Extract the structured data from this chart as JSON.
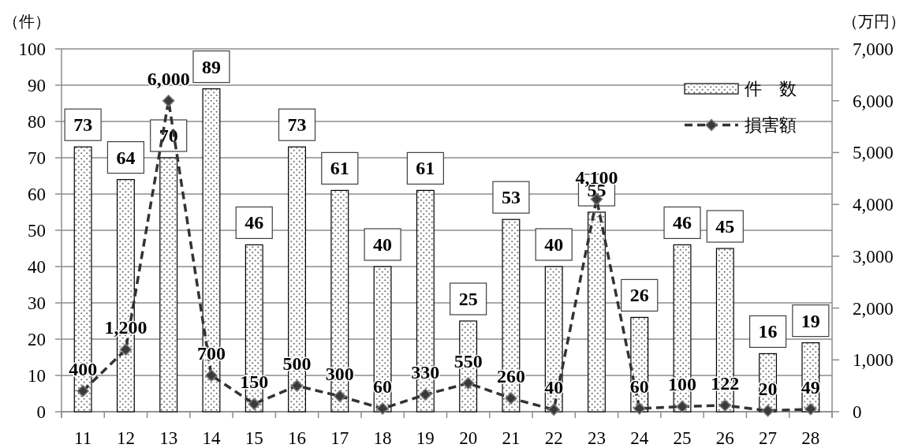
{
  "chart_data": {
    "type": "bar",
    "categories": [
      "11",
      "12",
      "13",
      "14",
      "15",
      "16",
      "17",
      "18",
      "19",
      "20",
      "21",
      "22",
      "23",
      "24",
      "25",
      "26",
      "27",
      "28"
    ],
    "series": [
      {
        "name": "件　数",
        "color": "#ffffff",
        "values": [
          73,
          64,
          70,
          89,
          46,
          73,
          61,
          40,
          61,
          25,
          53,
          40,
          55,
          26,
          46,
          45,
          16,
          19
        ]
      },
      {
        "name": "損害額",
        "type": "line",
        "axis": "y2",
        "color": "#333333",
        "values": [
          400,
          1200,
          6000,
          700,
          150,
          500,
          300,
          60,
          330,
          550,
          260,
          40,
          4100,
          60,
          100,
          122,
          20,
          49
        ],
        "value_labels": [
          "400",
          "1,200",
          "6,000",
          "700",
          "150",
          "500",
          "300",
          "60",
          "330",
          "550",
          "260",
          "40",
          "4,100",
          "60",
          "100",
          "122",
          "20",
          "49"
        ]
      }
    ],
    "ylabel": "（件）",
    "y2label": "（万円）",
    "ylim": [
      0,
      100
    ],
    "yticks": [
      0,
      10,
      20,
      30,
      40,
      50,
      60,
      70,
      80,
      90,
      100
    ],
    "y2lim": [
      0,
      7000
    ],
    "y2ticks": [
      0,
      {
        "value": 1000,
        "label": "1,000"
      },
      {
        "value": 2000,
        "label": "2,000"
      },
      {
        "value": 3000,
        "label": "3,000"
      },
      {
        "value": 4000,
        "label": "4,000"
      },
      {
        "value": 5000,
        "label": "5,000"
      },
      {
        "value": 6000,
        "label": "6,000"
      },
      {
        "value": 7000,
        "label": "7,000"
      }
    ],
    "grid": "y",
    "legend": "top right",
    "marker": "diamond",
    "line_style": "dashed",
    "data_labels": true
  }
}
